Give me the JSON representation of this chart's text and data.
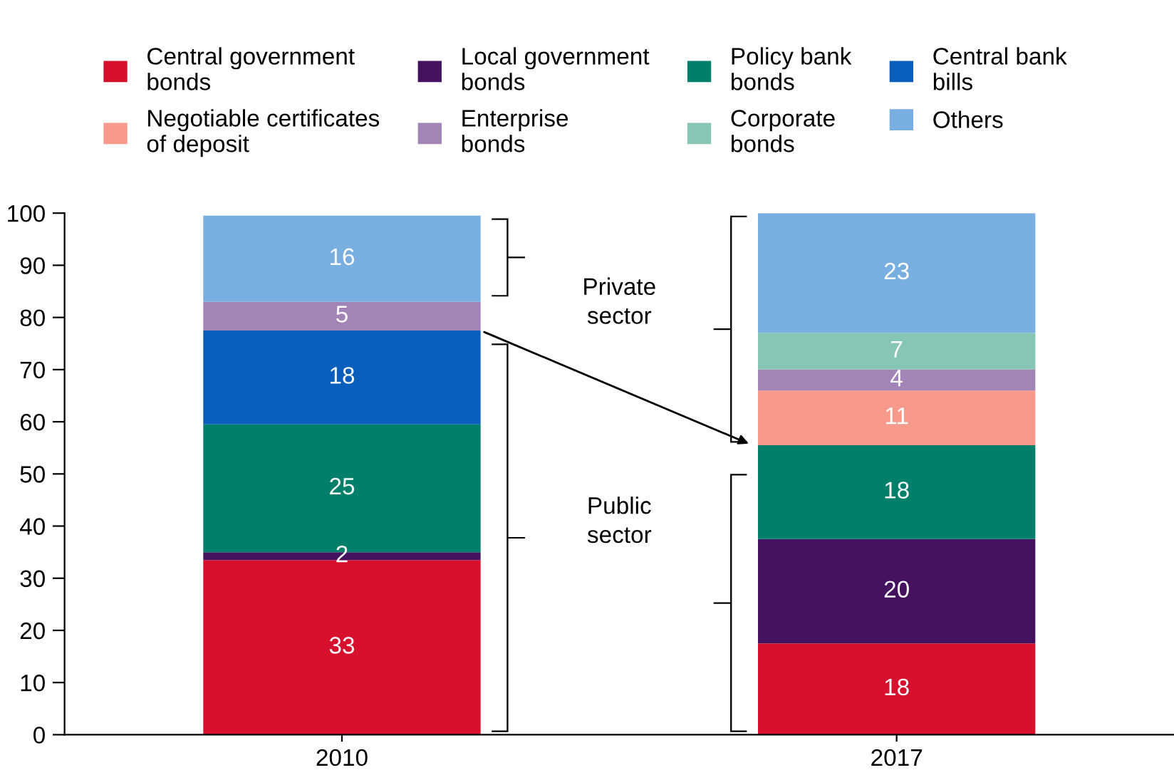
{
  "chart_data": {
    "type": "bar",
    "stacked": true,
    "categories": [
      "2010",
      "2017"
    ],
    "ylim": [
      0,
      100
    ],
    "yticks": [
      0,
      10,
      20,
      30,
      40,
      50,
      60,
      70,
      80,
      90,
      100
    ],
    "series": [
      {
        "name": "Central government\nbonds",
        "color": "#d7102e",
        "values": [
          33.5,
          17.5
        ],
        "value_labels": [
          "33",
          "18"
        ]
      },
      {
        "name": "Local government\nbonds",
        "color": "#44125f",
        "values": [
          1.5,
          20
        ],
        "value_labels": [
          "2",
          "20"
        ]
      },
      {
        "name": "Policy bank\nbonds",
        "color": "#00806b",
        "values": [
          24.5,
          18
        ],
        "value_labels": [
          "25",
          "18"
        ]
      },
      {
        "name": "Central bank\nbills",
        "color": "#0b5fbc",
        "values": [
          18,
          null
        ],
        "value_labels": [
          "18",
          null
        ]
      },
      {
        "name": "Negotiable certificates\nof deposit",
        "color": "#f7998b",
        "values": [
          null,
          10.5
        ],
        "value_labels": [
          null,
          "11"
        ]
      },
      {
        "name": "Enterprise\nbonds",
        "color": "#a384b6",
        "values": [
          5.5,
          4
        ],
        "value_labels": [
          "5",
          "4"
        ]
      },
      {
        "name": "Corporate\nbonds",
        "color": "#87c5b4",
        "values": [
          null,
          7
        ],
        "value_labels": [
          null,
          "7"
        ]
      },
      {
        "name": "Others",
        "color": "#78aee0",
        "values": [
          16.5,
          23
        ],
        "value_labels": [
          "16",
          "23"
        ]
      }
    ],
    "legend": "top",
    "grid": false,
    "annotations": [
      "Private\nsector",
      "Public\nsector"
    ]
  }
}
